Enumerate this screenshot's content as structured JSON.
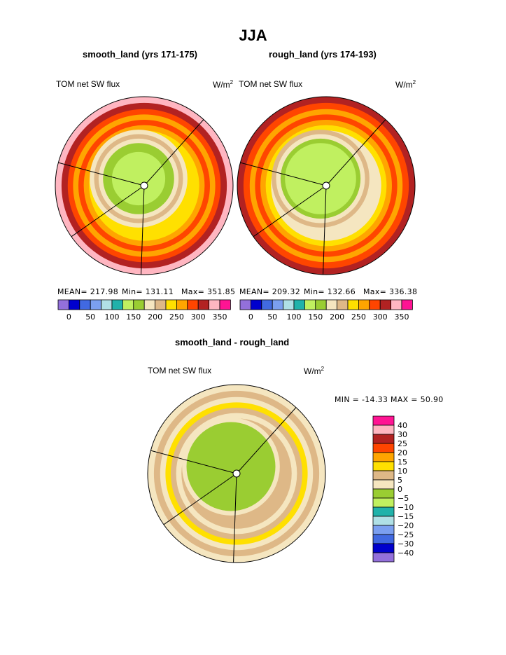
{
  "chart_data": {
    "type": "heatmap",
    "title": "JJA",
    "palette": [
      "#9370DB",
      "#0000CD",
      "#4169E1",
      "#7B9FF0",
      "#B0E0E6",
      "#20B2AA",
      "#C0F060",
      "#9ACD32",
      "#F5E6C0",
      "#DEB887",
      "#FFE000",
      "#FFA500",
      "#FF4500",
      "#B22222",
      "#FFB6C1",
      "#FF1493"
    ],
    "panels": [
      {
        "subtitle": "smooth_land (yrs 171-175)",
        "variable": "TOM net SW flux",
        "units": "W/m",
        "units_exp": "2",
        "mean_label": "MEAN= 217.98",
        "min_label": "Min= 131.11",
        "max_label": "Max= 351.85",
        "mean": 217.98,
        "min": 131.11,
        "max": 351.85,
        "colorbar_labels": [
          "0",
          "50",
          "100",
          "150",
          "200",
          "250",
          "300",
          "350"
        ],
        "ring_color_indices": [
          14,
          13,
          12,
          11,
          12,
          11,
          10,
          8,
          9,
          8,
          7,
          6
        ]
      },
      {
        "subtitle": "rough_land (yrs 174-193)",
        "variable": "TOM net SW flux",
        "units": "W/m",
        "units_exp": "2",
        "mean_label": "MEAN= 209.32",
        "min_label": "Min= 132.66",
        "max_label": "Max= 336.38",
        "mean": 209.32,
        "min": 132.66,
        "max": 336.38,
        "colorbar_labels": [
          "0",
          "50",
          "100",
          "150",
          "200",
          "250",
          "300",
          "350"
        ],
        "ring_color_indices": [
          13,
          12,
          11,
          12,
          11,
          10,
          8,
          9,
          8,
          7,
          6,
          6
        ]
      },
      {
        "subtitle": "smooth_land - rough_land",
        "variable": "TOM net SW flux",
        "units": "W/m",
        "units_exp": "2",
        "minmax_label": "MIN = -14.33 MAX =  50.90",
        "min": -14.33,
        "max": 50.9,
        "colorbar_labels": [
          "40",
          "30",
          "25",
          "20",
          "15",
          "10",
          "5",
          "0",
          "−5",
          "−10",
          "−15",
          "−20",
          "−25",
          "−30",
          "−40"
        ],
        "ring_color_indices": [
          8,
          9,
          8,
          10,
          9,
          8,
          9,
          8,
          7,
          7,
          7,
          7
        ]
      }
    ]
  }
}
